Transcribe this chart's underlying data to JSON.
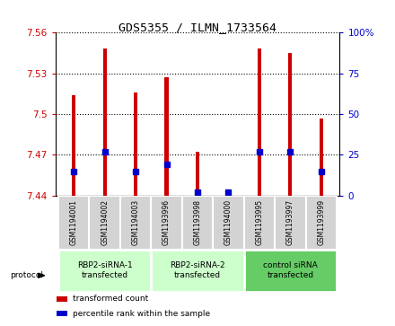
{
  "title": "GDS5355 / ILMN_1733564",
  "samples": [
    "GSM1194001",
    "GSM1194002",
    "GSM1194003",
    "GSM1193996",
    "GSM1193998",
    "GSM1194000",
    "GSM1193995",
    "GSM1193997",
    "GSM1193999"
  ],
  "bar_tops": [
    7.514,
    7.548,
    7.516,
    7.527,
    7.472,
    7.441,
    7.548,
    7.545,
    7.497
  ],
  "bar_base": 7.44,
  "percentile_pct": [
    15,
    27,
    15,
    19,
    2,
    2,
    27,
    27,
    15
  ],
  "ylim": [
    7.44,
    7.56
  ],
  "yticks": [
    7.44,
    7.47,
    7.5,
    7.53,
    7.56
  ],
  "ytick_labels": [
    "7.44",
    "7.47",
    "7.5",
    "7.53",
    "7.56"
  ],
  "y2lim": [
    0,
    100
  ],
  "y2ticks": [
    0,
    25,
    50,
    75,
    100
  ],
  "y2tick_labels": [
    "0",
    "25",
    "50",
    "75",
    "100%"
  ],
  "bar_color": "#cc0000",
  "percentile_color": "#0000cc",
  "groups": [
    {
      "label": "RBP2-siRNA-1\ntransfected",
      "start": 0,
      "end": 3,
      "color": "#ccffcc"
    },
    {
      "label": "RBP2-siRNA-2\ntransfected",
      "start": 3,
      "end": 6,
      "color": "#ccffcc"
    },
    {
      "label": "control siRNA\ntransfected",
      "start": 6,
      "end": 9,
      "color": "#66cc66"
    }
  ],
  "legend_items": [
    {
      "label": "transformed count",
      "color": "#cc0000"
    },
    {
      "label": "percentile rank within the sample",
      "color": "#0000cc"
    }
  ],
  "protocol_label": "protocol",
  "background_color": "#ffffff",
  "plot_bg_color": "#ffffff",
  "sample_bg_color": "#d3d3d3",
  "bar_width": 0.12
}
